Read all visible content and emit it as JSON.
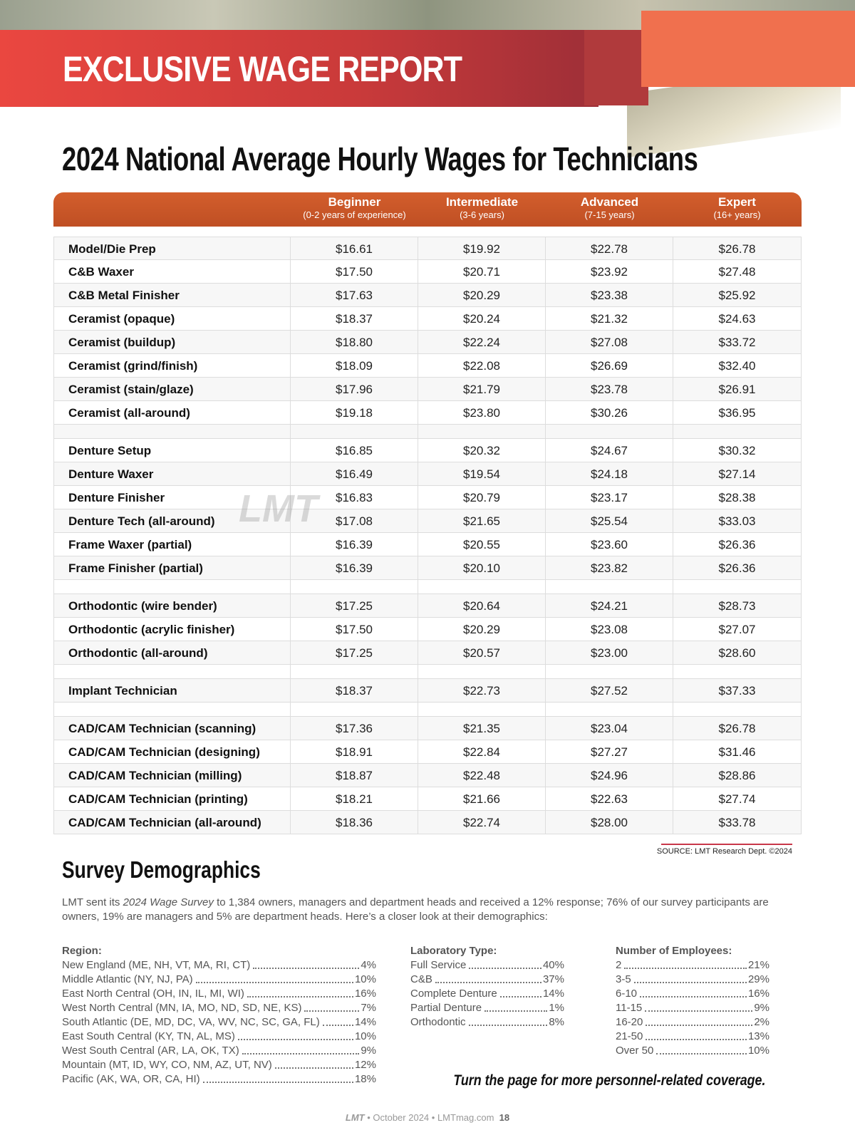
{
  "header": {
    "banner": "EXCLUSIVE WAGE REPORT",
    "title": "2024 National Average Hourly Wages for Technicians"
  },
  "table": {
    "columns": [
      {
        "name": "Beginner",
        "sub": "(0-2 years of experience)"
      },
      {
        "name": "Intermediate",
        "sub": "(3-6 years)"
      },
      {
        "name": "Advanced",
        "sub": "(7-15 years)"
      },
      {
        "name": "Expert",
        "sub": "(16+ years)"
      }
    ],
    "groups": [
      [
        [
          "Model/Die Prep",
          "$16.61",
          "$19.92",
          "$22.78",
          "$26.78"
        ],
        [
          "C&B Waxer",
          "$17.50",
          "$20.71",
          "$23.92",
          "$27.48"
        ],
        [
          "C&B Metal Finisher",
          "$17.63",
          "$20.29",
          "$23.38",
          "$25.92"
        ],
        [
          "Ceramist (opaque)",
          "$18.37",
          "$20.24",
          "$21.32",
          "$24.63"
        ],
        [
          "Ceramist (buildup)",
          "$18.80",
          "$22.24",
          "$27.08",
          "$33.72"
        ],
        [
          "Ceramist (grind/finish)",
          "$18.09",
          "$22.08",
          "$26.69",
          "$32.40"
        ],
        [
          "Ceramist (stain/glaze)",
          "$17.96",
          "$21.79",
          "$23.78",
          "$26.91"
        ],
        [
          "Ceramist (all-around)",
          "$19.18",
          "$23.80",
          "$30.26",
          "$36.95"
        ]
      ],
      [
        [
          "Denture Setup",
          "$16.85",
          "$20.32",
          "$24.67",
          "$30.32"
        ],
        [
          "Denture Waxer",
          "$16.49",
          "$19.54",
          "$24.18",
          "$27.14"
        ],
        [
          "Denture Finisher",
          "$16.83",
          "$20.79",
          "$23.17",
          "$28.38"
        ],
        [
          "Denture Tech (all-around)",
          "$17.08",
          "$21.65",
          "$25.54",
          "$33.03"
        ],
        [
          "Frame Waxer (partial)",
          "$16.39",
          "$20.55",
          "$23.60",
          "$26.36"
        ],
        [
          "Frame Finisher (partial)",
          "$16.39",
          "$20.10",
          "$23.82",
          "$26.36"
        ]
      ],
      [
        [
          "Orthodontic (wire bender)",
          "$17.25",
          "$20.64",
          "$24.21",
          "$28.73"
        ],
        [
          "Orthodontic (acrylic finisher)",
          "$17.50",
          "$20.29",
          "$23.08",
          "$27.07"
        ],
        [
          "Orthodontic (all-around)",
          "$17.25",
          "$20.57",
          "$23.00",
          "$28.60"
        ]
      ],
      [
        [
          "Implant Technician",
          "$18.37",
          "$22.73",
          "$27.52",
          "$37.33"
        ]
      ],
      [
        [
          "CAD/CAM Technician (scanning)",
          "$17.36",
          "$21.35",
          "$23.04",
          "$26.78"
        ],
        [
          "CAD/CAM Technician (designing)",
          "$18.91",
          "$22.84",
          "$27.27",
          "$31.46"
        ],
        [
          "CAD/CAM Technician (milling)",
          "$18.87",
          "$22.48",
          "$24.96",
          "$28.86"
        ],
        [
          "CAD/CAM Technician (printing)",
          "$18.21",
          "$21.66",
          "$22.63",
          "$27.74"
        ],
        [
          "CAD/CAM Technician (all-around)",
          "$18.36",
          "$22.74",
          "$28.00",
          "$33.78"
        ]
      ]
    ],
    "watermark": "LMT",
    "source": "SOURCE: LMT Research Dept. ©2024"
  },
  "demographics": {
    "title": "Survey Demographics",
    "intro_start": "LMT sent its ",
    "intro_italic": "2024 Wage Survey",
    "intro_end": " to 1,384 owners, managers and department heads and received a 12% response; 76% of our survey participants are owners, 19% are managers and 5% are department heads. Here’s a closer look at their demographics:",
    "lists": [
      {
        "title": "Region:",
        "items": [
          [
            "New England (ME, NH, VT, MA, RI, CT)",
            "4%"
          ],
          [
            "Middle Atlantic (NY, NJ, PA)",
            "10%"
          ],
          [
            "East North Central (OH, IN, IL, MI, WI)",
            "16%"
          ],
          [
            "West North Central (MN, IA, MO, ND, SD, NE, KS)",
            "7%"
          ],
          [
            "South Atlantic (DE, MD, DC, VA, WV, NC, SC, GA, FL)",
            "14%"
          ],
          [
            "East South Central (KY, TN, AL, MS)",
            "10%"
          ],
          [
            "West South Central (AR, LA, OK, TX)",
            "9%"
          ],
          [
            "Mountain (MT, ID, WY, CO, NM, AZ, UT, NV)",
            "12%"
          ],
          [
            "Pacific (AK, WA, OR, CA, HI)",
            "18%"
          ]
        ]
      },
      {
        "title": "Laboratory Type:",
        "items": [
          [
            "Full Service",
            "40%"
          ],
          [
            "C&B",
            "37%"
          ],
          [
            "Complete Denture",
            "14%"
          ],
          [
            "Partial Denture",
            "1%"
          ],
          [
            "Orthodontic",
            "8%"
          ]
        ]
      },
      {
        "title": "Number of Employees:",
        "items": [
          [
            "2",
            "21%"
          ],
          [
            "3-5",
            "29%"
          ],
          [
            "6-10",
            "16%"
          ],
          [
            "11-15",
            "9%"
          ],
          [
            "16-20",
            "2%"
          ],
          [
            "21-50",
            "13%"
          ],
          [
            "Over 50",
            "10%"
          ]
        ]
      }
    ],
    "note": "Turn the page for more personnel-related coverage."
  },
  "footer": {
    "brand": "LMT",
    "date": "October 2024",
    "site": "LMTmag.com",
    "page": "18"
  }
}
